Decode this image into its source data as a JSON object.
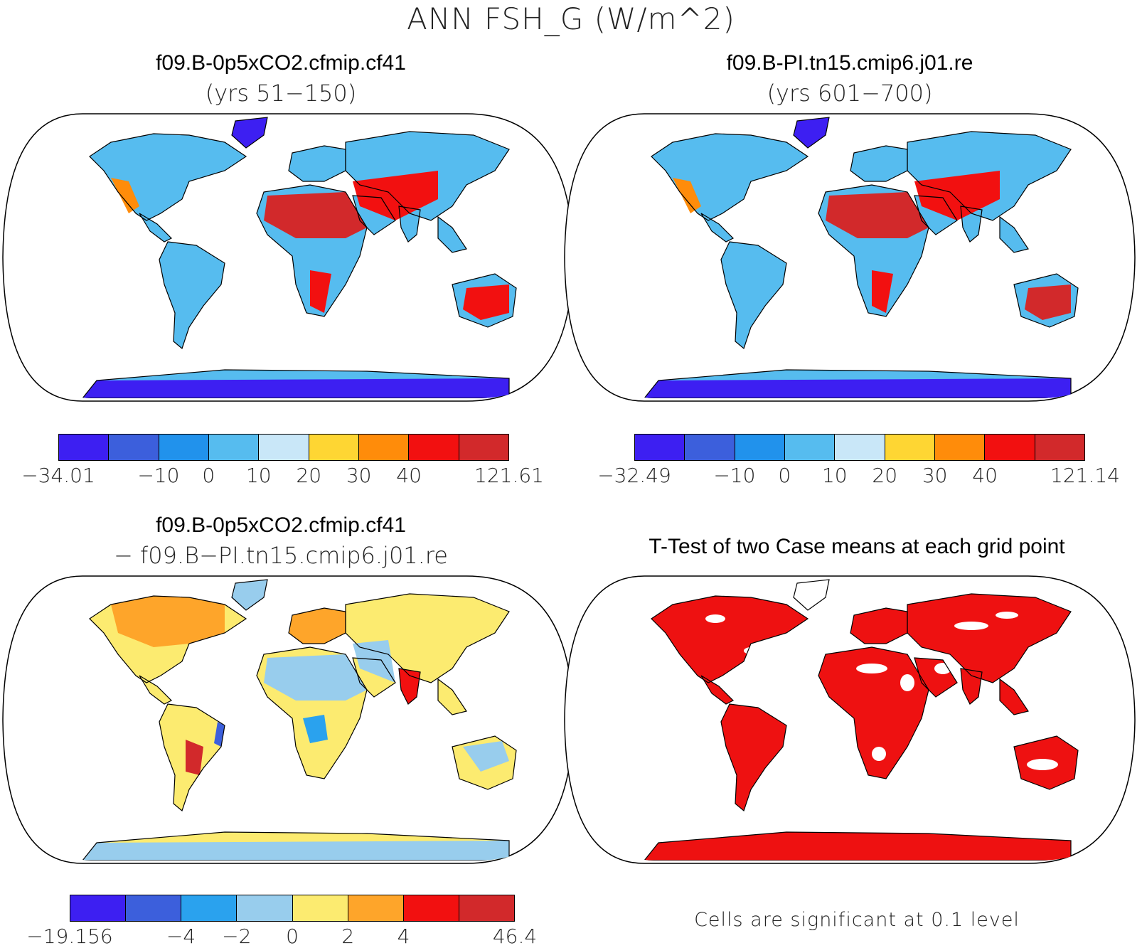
{
  "title": "ANN FSH_G (W/m^2)",
  "panels": {
    "top_left": {
      "case": "f09.B-0p5xCO2.cfmip.cf41",
      "years": "(yrs 51−150)",
      "colorbar": {
        "colors": [
          "#3d1ff2",
          "#3c5fdc",
          "#2192ec",
          "#56bcef",
          "#c9e7f8",
          "#fed633",
          "#ff8c0a",
          "#f21010",
          "#d2292b"
        ],
        "labels": [
          "−34.01",
          "−10",
          "0",
          "10",
          "20",
          "30",
          "40",
          "121.61"
        ]
      }
    },
    "top_right": {
      "case": "f09.B-PI.tn15.cmip6.j01.re",
      "years": "(yrs 601−700)",
      "colorbar": {
        "colors": [
          "#3d1ff2",
          "#3c5fdc",
          "#2192ec",
          "#56bcef",
          "#c9e7f8",
          "#fed633",
          "#ff8c0a",
          "#f21010",
          "#d2292b"
        ],
        "labels": [
          "−32.49",
          "−10",
          "0",
          "10",
          "20",
          "30",
          "40",
          "121.14"
        ]
      }
    },
    "bottom_left": {
      "case": "f09.B-0p5xCO2.cfmip.cf41",
      "subtitle": "− f09.B−PI.tn15.cmip6.j01.re",
      "colorbar": {
        "colors": [
          "#3d1ff2",
          "#3c5fdc",
          "#2aa2ee",
          "#98cded",
          "#fceb70",
          "#fea52a",
          "#f21010",
          "#d2292b"
        ],
        "labels": [
          "−19.156",
          "−4",
          "−2",
          "0",
          "2",
          "4",
          "46.4"
        ]
      }
    },
    "bottom_right": {
      "title": "T-Test of two Case means at each grid point",
      "note": "Cells are significant at 0.1 level",
      "significant_color": "#ee1111"
    }
  }
}
